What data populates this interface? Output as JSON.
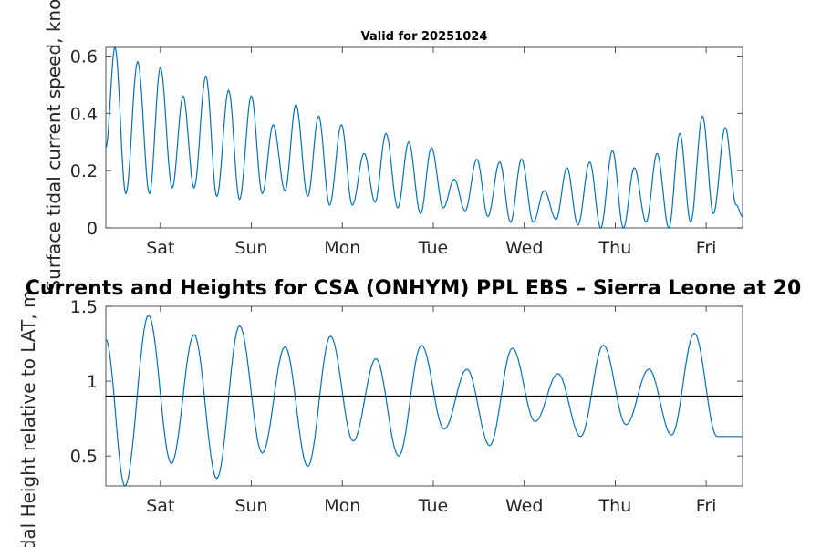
{
  "chart_data": [
    {
      "type": "line",
      "title": "Valid for 20251024",
      "ylabel": "Surface tidal current speed, knots",
      "xlabel": "",
      "xlim": [
        0,
        7.0
      ],
      "ylim": [
        0,
        0.63
      ],
      "yticks": [
        0,
        0.2,
        0.4,
        0.6
      ],
      "ytick_labels": [
        "0",
        "0.2",
        "0.4",
        "0.6"
      ],
      "xticks": [
        0.6,
        1.6,
        2.6,
        3.6,
        4.6,
        5.6,
        6.6
      ],
      "xtick_labels": [
        "Sat",
        "Sun",
        "Mon",
        "Tue",
        "Wed",
        "Thu",
        "Fri"
      ],
      "series_color": "#0072BD",
      "series": [
        {
          "name": "current speed",
          "x": [
            0,
            0.1,
            0.22,
            0.35,
            0.48,
            0.6,
            0.73,
            0.85,
            0.97,
            1.1,
            1.22,
            1.35,
            1.47,
            1.6,
            1.72,
            1.84,
            1.97,
            2.09,
            2.22,
            2.34,
            2.46,
            2.59,
            2.71,
            2.84,
            2.96,
            3.08,
            3.21,
            3.33,
            3.46,
            3.58,
            3.71,
            3.83,
            3.95,
            4.08,
            4.2,
            4.33,
            4.45,
            4.57,
            4.7,
            4.82,
            4.95,
            5.07,
            5.19,
            5.32,
            5.44,
            5.57,
            5.69,
            5.81,
            5.94,
            6.06,
            6.19,
            6.31,
            6.43,
            6.56,
            6.68,
            6.81,
            6.93,
            7.0
          ],
          "values": [
            0.28,
            0.63,
            0.12,
            0.58,
            0.12,
            0.56,
            0.14,
            0.46,
            0.14,
            0.53,
            0.11,
            0.48,
            0.1,
            0.46,
            0.12,
            0.36,
            0.13,
            0.43,
            0.11,
            0.39,
            0.08,
            0.36,
            0.08,
            0.26,
            0.09,
            0.33,
            0.07,
            0.3,
            0.05,
            0.28,
            0.07,
            0.17,
            0.06,
            0.24,
            0.04,
            0.23,
            0.02,
            0.24,
            0.02,
            0.13,
            0.03,
            0.21,
            0.01,
            0.23,
            0.0,
            0.27,
            0.0,
            0.21,
            0.02,
            0.26,
            0.0,
            0.33,
            0.02,
            0.39,
            0.05,
            0.35,
            0.08,
            0.04
          ]
        }
      ]
    },
    {
      "type": "line",
      "title": "Currents and Heights for CSA (ONHYM) PPL EBS  – Sierra Leone at 20",
      "ylabel": "Tidal Height relative to LAT, m",
      "xlabel": "",
      "xlim": [
        0,
        7.0
      ],
      "ylim": [
        0.3,
        1.5
      ],
      "yticks": [
        0.5,
        1,
        1.5
      ],
      "ytick_labels": [
        "0.5",
        "1",
        "1.5"
      ],
      "xticks": [
        0.6,
        1.6,
        2.6,
        3.6,
        4.6,
        5.6,
        6.6
      ],
      "xtick_labels": [
        "Sat",
        "Sun",
        "Mon",
        "Tue",
        "Wed",
        "Thu",
        "Fri"
      ],
      "reference_line": 0.9,
      "series_color": "#0072BD",
      "series": [
        {
          "name": "tidal height",
          "x": [
            0,
            0.21,
            0.47,
            0.72,
            0.97,
            1.22,
            1.47,
            1.72,
            1.97,
            2.22,
            2.47,
            2.72,
            2.97,
            3.22,
            3.47,
            3.72,
            3.97,
            4.22,
            4.47,
            4.72,
            4.97,
            5.22,
            5.47,
            5.72,
            5.97,
            6.22,
            6.47,
            6.72,
            6.97,
            7.0
          ],
          "values": [
            1.28,
            0.3,
            1.44,
            0.45,
            1.31,
            0.35,
            1.37,
            0.52,
            1.23,
            0.43,
            1.3,
            0.6,
            1.15,
            0.5,
            1.24,
            0.68,
            1.08,
            0.57,
            1.22,
            0.73,
            1.05,
            0.63,
            1.24,
            0.71,
            1.08,
            0.64,
            1.32,
            0.63,
            0.63,
            0.63
          ]
        }
      ]
    }
  ]
}
